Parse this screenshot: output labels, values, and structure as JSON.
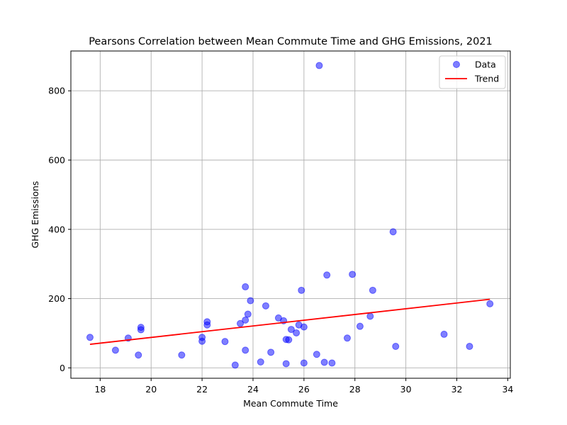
{
  "chart_data": {
    "type": "scatter",
    "title": "Pearsons Correlation between Mean Commute Time and GHG Emissions, 2021",
    "xlabel": "Mean Commute Time",
    "ylabel": "GHG Emissions",
    "xlim": [
      16.85,
      34.1
    ],
    "ylim": [
      -30,
      915
    ],
    "xticks": [
      18,
      20,
      22,
      24,
      26,
      28,
      30,
      32,
      34
    ],
    "yticks": [
      0,
      200,
      400,
      600,
      800
    ],
    "grid": true,
    "legend_position": "top-right",
    "series": [
      {
        "name": "Data",
        "kind": "scatter",
        "color": "#0000ff",
        "points": [
          [
            17.6,
            88
          ],
          [
            18.6,
            51
          ],
          [
            19.1,
            86
          ],
          [
            19.5,
            37
          ],
          [
            19.6,
            110
          ],
          [
            19.6,
            117
          ],
          [
            21.2,
            37
          ],
          [
            22.0,
            77
          ],
          [
            22.0,
            88
          ],
          [
            22.2,
            124
          ],
          [
            22.2,
            133
          ],
          [
            22.9,
            76
          ],
          [
            23.3,
            8
          ],
          [
            23.5,
            128
          ],
          [
            23.7,
            51
          ],
          [
            23.7,
            138
          ],
          [
            23.7,
            234
          ],
          [
            23.8,
            155
          ],
          [
            23.9,
            194
          ],
          [
            24.3,
            17
          ],
          [
            24.5,
            179
          ],
          [
            24.7,
            45
          ],
          [
            25.0,
            144
          ],
          [
            25.2,
            136
          ],
          [
            25.3,
            82
          ],
          [
            25.3,
            12
          ],
          [
            25.4,
            81
          ],
          [
            25.5,
            111
          ],
          [
            25.7,
            101
          ],
          [
            25.8,
            124
          ],
          [
            25.9,
            224
          ],
          [
            26.0,
            118
          ],
          [
            26.0,
            14
          ],
          [
            26.5,
            39
          ],
          [
            26.6,
            873
          ],
          [
            26.8,
            16
          ],
          [
            26.9,
            268
          ],
          [
            27.1,
            14
          ],
          [
            27.7,
            86
          ],
          [
            27.9,
            270
          ],
          [
            28.2,
            120
          ],
          [
            28.6,
            149
          ],
          [
            28.7,
            224
          ],
          [
            29.5,
            393
          ],
          [
            29.6,
            62
          ],
          [
            31.5,
            97
          ],
          [
            32.5,
            62
          ],
          [
            33.3,
            185
          ]
        ]
      },
      {
        "name": "Trend",
        "kind": "line",
        "color": "#ff0000",
        "points": [
          [
            17.6,
            68
          ],
          [
            33.3,
            198
          ]
        ]
      }
    ]
  }
}
